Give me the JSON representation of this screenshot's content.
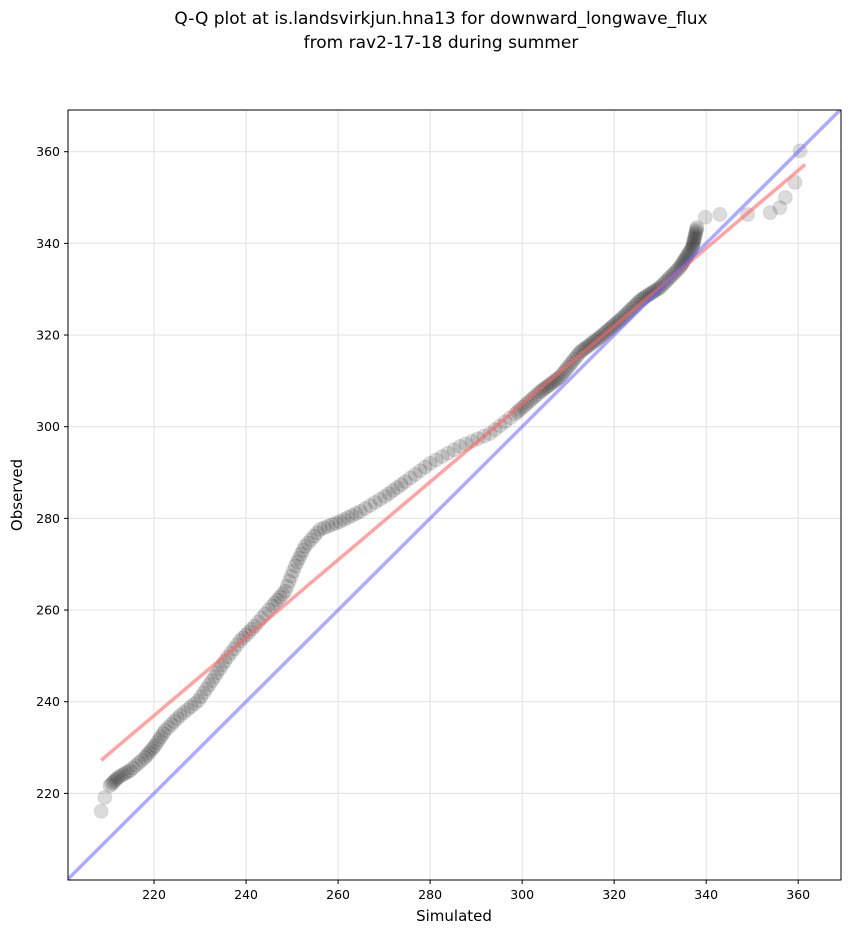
{
  "chart_data": {
    "type": "scatter",
    "title_line1": "Q-Q plot at is.landsvirkjun.hna13 for downward_longwave_flux",
    "title_line2": "from rav2-17-18 during summer",
    "xlabel": "Simulated",
    "ylabel": "Observed",
    "xlim": [
      201.3,
      369.3
    ],
    "ylim": [
      201.1,
      369.1
    ],
    "xticks": [
      220,
      240,
      260,
      280,
      300,
      320,
      340,
      360
    ],
    "yticks": [
      220,
      240,
      260,
      280,
      300,
      320,
      340,
      360
    ],
    "grid": true,
    "colors": {
      "points": "#000000",
      "fit_line": "#ff6666",
      "one_to_one": "#6666ff"
    },
    "points": [
      [
        208.5,
        216.1
      ],
      [
        209.3,
        219.1
      ],
      [
        210.4,
        221.7
      ],
      [
        212.2,
        223.5
      ],
      [
        214.8,
        225.0
      ],
      [
        218.0,
        227.8
      ],
      [
        220.2,
        230.4
      ],
      [
        222.4,
        233.7
      ],
      [
        225.7,
        237.0
      ],
      [
        229.6,
        240.2
      ],
      [
        232.6,
        244.6
      ],
      [
        235.4,
        248.9
      ],
      [
        238.7,
        253.3
      ],
      [
        241.9,
        256.5
      ],
      [
        245.7,
        260.9
      ],
      [
        248.5,
        264.1
      ],
      [
        250.7,
        269.6
      ],
      [
        252.8,
        273.9
      ],
      [
        256.1,
        277.6
      ],
      [
        260.4,
        279.3
      ],
      [
        264.8,
        281.5
      ],
      [
        270.2,
        284.8
      ],
      [
        274.6,
        288.0
      ],
      [
        280.0,
        292.0
      ],
      [
        286.5,
        295.7
      ],
      [
        293.0,
        298.5
      ],
      [
        298.5,
        302.8
      ],
      [
        303.9,
        307.6
      ],
      [
        308.3,
        310.9
      ],
      [
        312.6,
        316.3
      ],
      [
        317.0,
        319.6
      ],
      [
        321.3,
        323.3
      ],
      [
        325.7,
        327.6
      ],
      [
        330.0,
        330.4
      ],
      [
        334.3,
        334.8
      ],
      [
        337.0,
        339.1
      ],
      [
        338.0,
        343.5
      ],
      [
        339.8,
        345.7
      ],
      [
        343.0,
        346.3
      ],
      [
        349.0,
        346.3
      ],
      [
        353.9,
        346.7
      ],
      [
        356.0,
        347.8
      ],
      [
        357.2,
        350.0
      ],
      [
        359.3,
        353.3
      ],
      [
        360.4,
        360.2
      ]
    ],
    "fit_line": [
      [
        208.5,
        227.2
      ],
      [
        361.5,
        357.2
      ]
    ],
    "one_to_one_line": [
      [
        201.3,
        201.3
      ],
      [
        369.3,
        369.3
      ]
    ]
  }
}
